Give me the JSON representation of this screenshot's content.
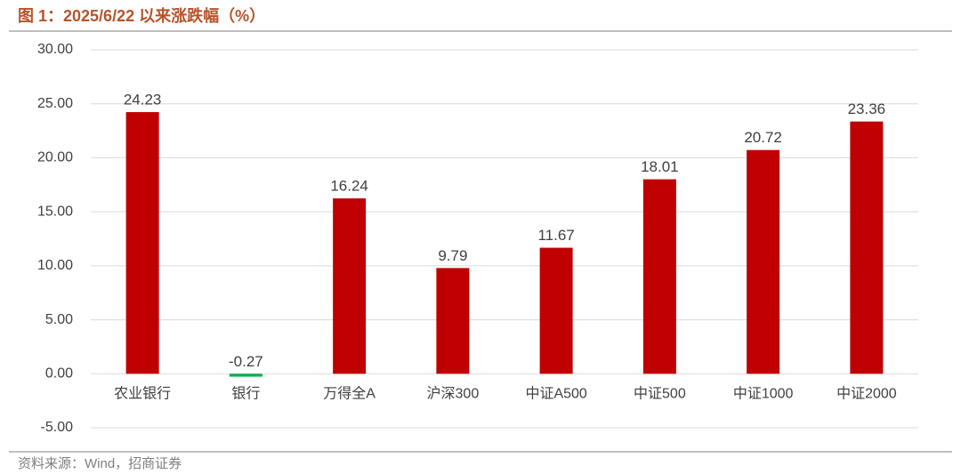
{
  "chart_data": {
    "type": "bar",
    "title": "图 1：2025/6/22 以来涨跌幅（%）",
    "source": "资料来源：Wind，招商证券",
    "categories": [
      "农业银行",
      "银行",
      "万得全A",
      "沪深300",
      "中证A500",
      "中证500",
      "中证1000",
      "中证2000"
    ],
    "values": [
      24.23,
      -0.27,
      16.24,
      9.79,
      11.67,
      18.01,
      20.72,
      23.36
    ],
    "colors": [
      "#c00000",
      "#00b050",
      "#c00000",
      "#c00000",
      "#c00000",
      "#c00000",
      "#c00000",
      "#c00000"
    ],
    "ylim": [
      -5,
      30
    ],
    "yticks": [
      {
        "value": -5,
        "label": "-5.00"
      },
      {
        "value": 0,
        "label": "0.00"
      },
      {
        "value": 5,
        "label": "5.00"
      },
      {
        "value": 10,
        "label": "10.00"
      },
      {
        "value": 15,
        "label": "15.00"
      },
      {
        "value": 20,
        "label": "20.00"
      },
      {
        "value": 25,
        "label": "25.00"
      },
      {
        "value": 30,
        "label": "30.00"
      }
    ],
    "grid": true
  }
}
